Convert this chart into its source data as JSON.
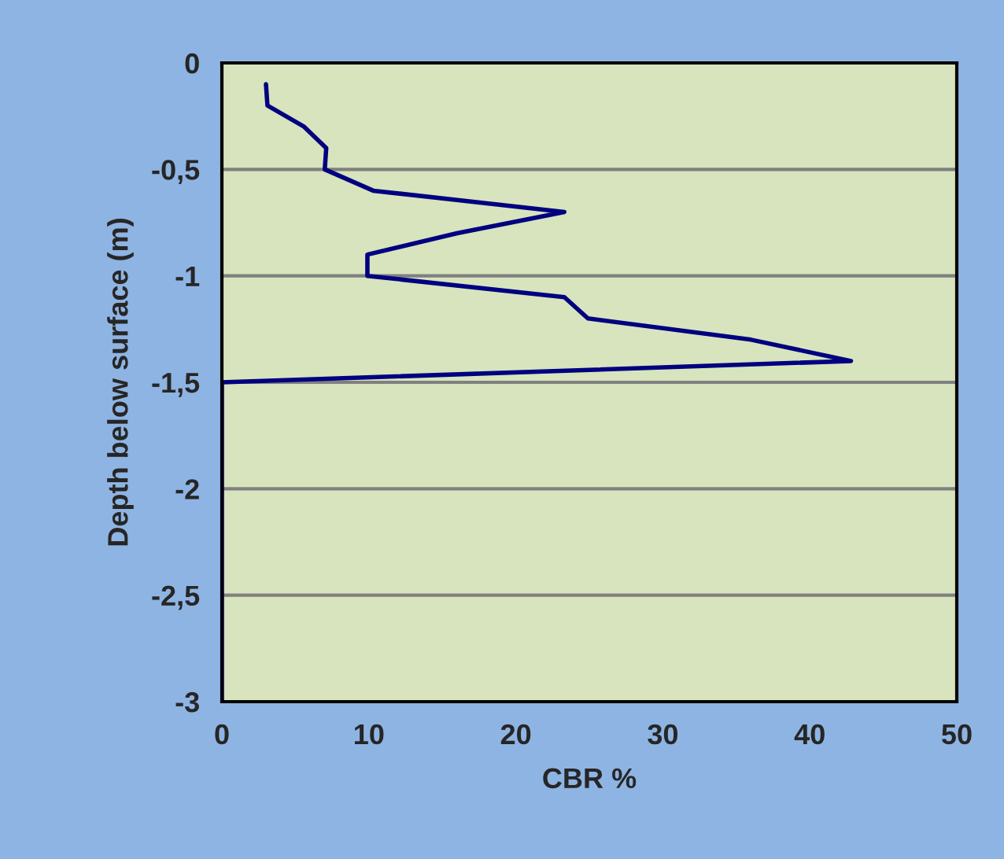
{
  "chart_data": {
    "type": "line",
    "xlabel": "CBR %",
    "ylabel": "Depth below surface (m)",
    "series": [
      {
        "color": "#000080",
        "x": [
          3.0,
          3.1,
          5.6,
          7.1,
          7.0,
          10.3,
          23.3,
          16,
          9.9,
          9.9,
          23.3,
          24.9,
          36,
          42.8,
          0,
          0,
          0,
          0,
          0,
          0,
          0,
          0,
          0,
          0,
          0,
          0,
          0,
          0,
          0,
          0
        ],
        "values": [
          -0.1,
          -0.2,
          -0.3,
          -0.4,
          -0.5,
          -0.6,
          -0.7,
          -0.8,
          -0.9,
          -1.0,
          -1.1,
          -1.2,
          -1.3,
          -1.4,
          -1.5,
          -1.6,
          -1.7,
          -1.8,
          -1.9,
          -2.0,
          -2.1,
          -2.2,
          -2.3,
          -2.4,
          -2.5,
          -2.6,
          -2.7,
          -2.8,
          -2.9,
          -3.0
        ]
      }
    ],
    "xlim": [
      0,
      50
    ],
    "xticks": [
      0,
      10,
      20,
      30,
      40,
      50
    ],
    "ylim": [
      -3,
      0
    ],
    "yticks": [
      {
        "value": -3,
        "label": "-3"
      },
      {
        "value": -2.5,
        "label": "-2,5"
      },
      {
        "value": -2,
        "label": "-2"
      },
      {
        "value": -1.5,
        "label": "-1,5"
      },
      {
        "value": -1,
        "label": "-1"
      },
      {
        "value": -0.5,
        "label": "-0,5"
      },
      {
        "value": 0,
        "label": "0"
      }
    ],
    "grid": "y",
    "legend": false,
    "marker": "none",
    "line_style": "solid"
  }
}
